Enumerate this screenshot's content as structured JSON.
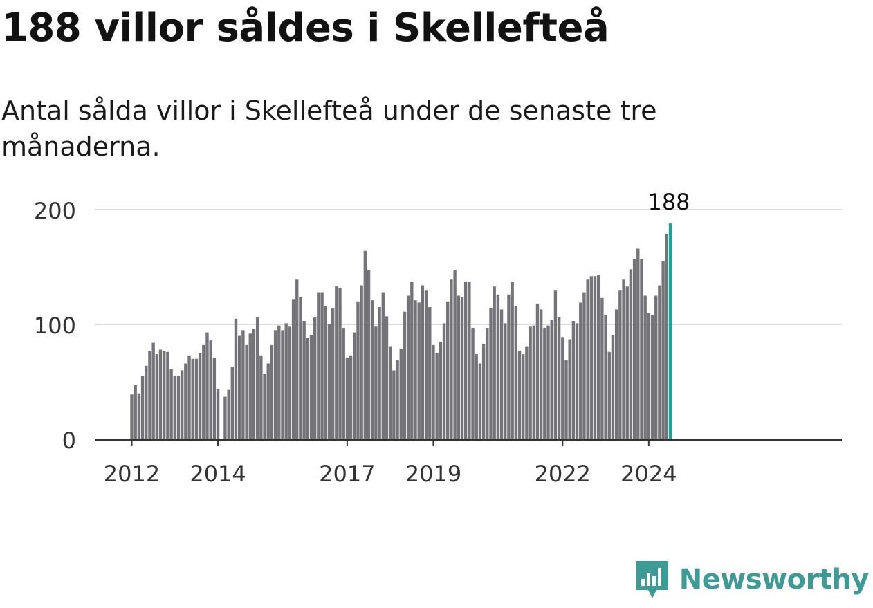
{
  "title": "188 villor såldes i Skellefteå",
  "subtitle": "Antal sålda villor i Skellefteå under de senaste tre månaderna.",
  "brand": "Newsworthy",
  "colors": {
    "bar": "#747378",
    "highlight": "#15a59c",
    "grid": "#dadada",
    "axis": "#333333",
    "brand": "#3e9a95"
  },
  "chart_data": {
    "type": "bar",
    "title": "188 villor såldes i Skellefteå",
    "subtitle": "Antal sålda villor i Skellefteå under de senaste tre månaderna.",
    "xlabel": "",
    "ylabel": "",
    "ylim": [
      0,
      200
    ],
    "yticks": [
      0,
      100,
      200
    ],
    "xticks": [
      "2012",
      "2014",
      "2017",
      "2019",
      "2022",
      "2024"
    ],
    "grid": true,
    "start": "2012-01",
    "gaps": [
      {
        "after_index": 24,
        "months": 1
      }
    ],
    "highlight": {
      "label": "188",
      "value": 188
    },
    "values": [
      39,
      47,
      40,
      55,
      64,
      77,
      84,
      74,
      78,
      77,
      76,
      61,
      55,
      55,
      60,
      66,
      73,
      70,
      70,
      75,
      82,
      93,
      86,
      71,
      44,
      37,
      43,
      63,
      105,
      90,
      95,
      82,
      92,
      96,
      106,
      73,
      57,
      66,
      82,
      95,
      99,
      95,
      101,
      98,
      122,
      139,
      124,
      103,
      88,
      91,
      106,
      128,
      128,
      116,
      100,
      114,
      133,
      132,
      97,
      71,
      73,
      93,
      120,
      134,
      164,
      147,
      121,
      98,
      115,
      128,
      107,
      81,
      60,
      69,
      79,
      111,
      125,
      137,
      121,
      119,
      134,
      130,
      115,
      82,
      75,
      85,
      101,
      120,
      139,
      147,
      125,
      124,
      137,
      137,
      97,
      74,
      66,
      83,
      97,
      114,
      133,
      126,
      113,
      101,
      126,
      137,
      116,
      77,
      74,
      81,
      98,
      99,
      118,
      113,
      97,
      99,
      104,
      130,
      106,
      89,
      69,
      87,
      103,
      101,
      119,
      128,
      139,
      142,
      142,
      143,
      123,
      108,
      76,
      91,
      113,
      130,
      139,
      133,
      148,
      157,
      166,
      157,
      125,
      110,
      108,
      125,
      134,
      155,
      179,
      188
    ]
  }
}
